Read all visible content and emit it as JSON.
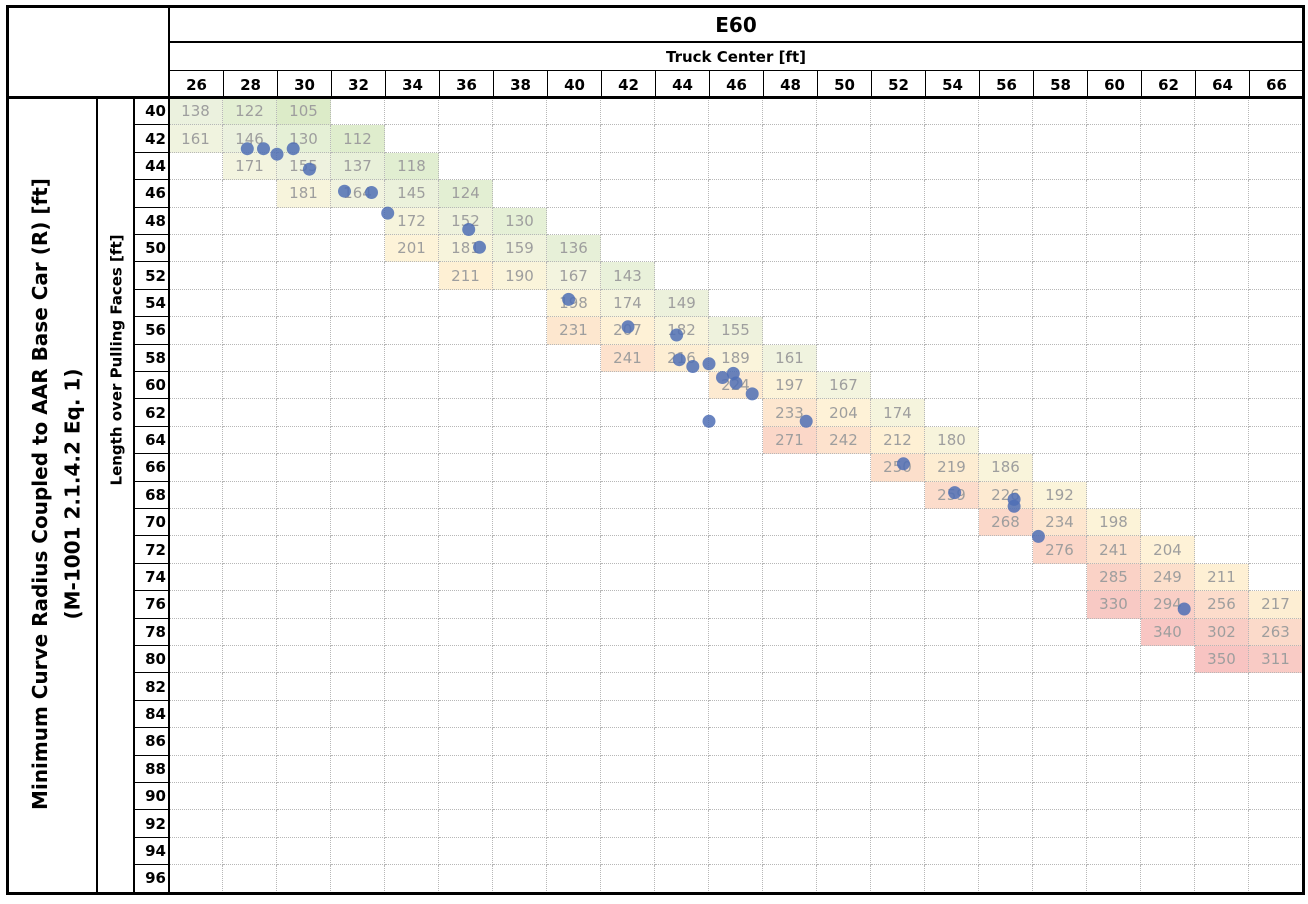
{
  "title": "E60",
  "x_header": "Truck Center [ft]",
  "y_header_outer_line1": "Minimum Curve Radius Coupled to AAR Base Car (R) [ft]",
  "y_header_outer_line2": "(M-1001 2.1.4.2 Eq. 1)",
  "y_header_inner": "Length over Pulling Faces [ft]",
  "chart_data": {
    "type": "heatmap",
    "title": "E60",
    "xlabel": "Truck Center [ft]",
    "ylabel": "Length over Pulling Faces [ft]",
    "value_label": "Minimum Curve Radius Coupled to AAR Base Car (R) [ft] (M-1001 2.1.4.2 Eq. 1)",
    "columns": [
      26,
      28,
      30,
      32,
      34,
      36,
      38,
      40,
      42,
      44,
      46,
      48,
      50,
      52,
      54,
      56,
      58,
      60,
      62,
      64,
      66
    ],
    "rows": [
      40,
      42,
      44,
      46,
      48,
      50,
      52,
      54,
      56,
      58,
      60,
      62,
      64,
      66,
      68,
      70,
      72,
      74,
      76,
      78,
      80,
      82,
      84,
      86,
      88,
      90,
      92,
      94,
      96
    ],
    "cells": [
      {
        "row": 40,
        "col": 26,
        "value": 138,
        "color": "#ebf1de"
      },
      {
        "row": 40,
        "col": 28,
        "value": 122,
        "color": "#e3efd3"
      },
      {
        "row": 40,
        "col": 30,
        "value": 105,
        "color": "#dcebc8"
      },
      {
        "row": 42,
        "col": 26,
        "value": 161,
        "color": "#f0f3df"
      },
      {
        "row": 42,
        "col": 28,
        "value": 146,
        "color": "#ebf1de"
      },
      {
        "row": 42,
        "col": 30,
        "value": 130,
        "color": "#e5f0d6"
      },
      {
        "row": 42,
        "col": 32,
        "value": 112,
        "color": "#dfedcd"
      },
      {
        "row": 44,
        "col": 28,
        "value": 171,
        "color": "#f3f4df"
      },
      {
        "row": 44,
        "col": 30,
        "value": 155,
        "color": "#eef2df"
      },
      {
        "row": 44,
        "col": 32,
        "value": 137,
        "color": "#e8f0d9"
      },
      {
        "row": 44,
        "col": 34,
        "value": 118,
        "color": "#e1eed1"
      },
      {
        "row": 46,
        "col": 30,
        "value": 181,
        "color": "#f7f4dc"
      },
      {
        "row": 46,
        "col": 32,
        "value": 164,
        "color": "#f1f3df"
      },
      {
        "row": 46,
        "col": 34,
        "value": 145,
        "color": "#ebf1db"
      },
      {
        "row": 46,
        "col": 36,
        "value": 124,
        "color": "#e3efd3"
      },
      {
        "row": 48,
        "col": 34,
        "value": 172,
        "color": "#f6f4dc"
      },
      {
        "row": 48,
        "col": 36,
        "value": 152,
        "color": "#eef2dc"
      },
      {
        "row": 48,
        "col": 38,
        "value": 130,
        "color": "#e5f0d6"
      },
      {
        "row": 50,
        "col": 34,
        "value": 201,
        "color": "#fdf3d8"
      },
      {
        "row": 50,
        "col": 36,
        "value": 181,
        "color": "#f7f4dc"
      },
      {
        "row": 50,
        "col": 38,
        "value": 159,
        "color": "#f0f3dd"
      },
      {
        "row": 50,
        "col": 40,
        "value": 136,
        "color": "#e7f0d8"
      },
      {
        "row": 52,
        "col": 36,
        "value": 211,
        "color": "#fef0d4"
      },
      {
        "row": 52,
        "col": 38,
        "value": 190,
        "color": "#faf4da"
      },
      {
        "row": 52,
        "col": 40,
        "value": 167,
        "color": "#f3f4df"
      },
      {
        "row": 52,
        "col": 42,
        "value": 143,
        "color": "#e9f1da"
      },
      {
        "row": 54,
        "col": 40,
        "value": 198,
        "color": "#fcf3d8"
      },
      {
        "row": 54,
        "col": 42,
        "value": 174,
        "color": "#f5f4dd"
      },
      {
        "row": 54,
        "col": 44,
        "value": 149,
        "color": "#ecf1dc"
      },
      {
        "row": 56,
        "col": 40,
        "value": 231,
        "color": "#fde7cf"
      },
      {
        "row": 56,
        "col": 42,
        "value": 207,
        "color": "#fef1d6"
      },
      {
        "row": 56,
        "col": 44,
        "value": 182,
        "color": "#f8f4dc"
      },
      {
        "row": 56,
        "col": 46,
        "value": 155,
        "color": "#eef2dd"
      },
      {
        "row": 58,
        "col": 42,
        "value": 241,
        "color": "#fde2cd"
      },
      {
        "row": 58,
        "col": 44,
        "value": 216,
        "color": "#fdeed3"
      },
      {
        "row": 58,
        "col": 46,
        "value": 189,
        "color": "#faf4db"
      },
      {
        "row": 58,
        "col": 48,
        "value": 161,
        "color": "#f0f3df"
      },
      {
        "row": 60,
        "col": 46,
        "value": 224,
        "color": "#fdead1"
      },
      {
        "row": 60,
        "col": 48,
        "value": 197,
        "color": "#fcf3d8"
      },
      {
        "row": 60,
        "col": 50,
        "value": 167,
        "color": "#f3f4df"
      },
      {
        "row": 62,
        "col": 48,
        "value": 233,
        "color": "#fde6cf"
      },
      {
        "row": 62,
        "col": 50,
        "value": 204,
        "color": "#fef2d7"
      },
      {
        "row": 62,
        "col": 52,
        "value": 174,
        "color": "#f5f4dd"
      },
      {
        "row": 64,
        "col": 48,
        "value": 271,
        "color": "#fbd7c8"
      },
      {
        "row": 64,
        "col": 50,
        "value": 242,
        "color": "#fde2cd"
      },
      {
        "row": 64,
        "col": 52,
        "value": 212,
        "color": "#fef0d4"
      },
      {
        "row": 64,
        "col": 54,
        "value": 180,
        "color": "#f7f4dc"
      },
      {
        "row": 66,
        "col": 52,
        "value": 250,
        "color": "#fcdfcb"
      },
      {
        "row": 66,
        "col": 54,
        "value": 219,
        "color": "#fdedd2"
      },
      {
        "row": 66,
        "col": 56,
        "value": 186,
        "color": "#f9f4db"
      },
      {
        "row": 68,
        "col": 54,
        "value": 259,
        "color": "#fcdccb"
      },
      {
        "row": 68,
        "col": 56,
        "value": 226,
        "color": "#fdead1"
      },
      {
        "row": 68,
        "col": 58,
        "value": 192,
        "color": "#fbf4da"
      },
      {
        "row": 70,
        "col": 56,
        "value": 268,
        "color": "#fbd8c9"
      },
      {
        "row": 70,
        "col": 58,
        "value": 234,
        "color": "#fde6cf"
      },
      {
        "row": 70,
        "col": 60,
        "value": 198,
        "color": "#fcf3d8"
      },
      {
        "row": 72,
        "col": 58,
        "value": 276,
        "color": "#fbd6c8"
      },
      {
        "row": 72,
        "col": 60,
        "value": 241,
        "color": "#fde2cd"
      },
      {
        "row": 72,
        "col": 62,
        "value": 204,
        "color": "#fef2d7"
      },
      {
        "row": 74,
        "col": 60,
        "value": 285,
        "color": "#fad2c6"
      },
      {
        "row": 74,
        "col": 62,
        "value": 249,
        "color": "#fcdfcb"
      },
      {
        "row": 74,
        "col": 64,
        "value": 211,
        "color": "#fef0d4"
      },
      {
        "row": 76,
        "col": 60,
        "value": 330,
        "color": "#f8c9c4"
      },
      {
        "row": 76,
        "col": 62,
        "value": 294,
        "color": "#facfc6"
      },
      {
        "row": 76,
        "col": 64,
        "value": 256,
        "color": "#fcdccb"
      },
      {
        "row": 76,
        "col": 66,
        "value": 217,
        "color": "#fdeed3"
      },
      {
        "row": 78,
        "col": 62,
        "value": 340,
        "color": "#f8c6c3"
      },
      {
        "row": 78,
        "col": 64,
        "value": 302,
        "color": "#f9cdc5"
      },
      {
        "row": 78,
        "col": 66,
        "value": 263,
        "color": "#fbdaca"
      },
      {
        "row": 80,
        "col": 64,
        "value": 350,
        "color": "#f8c4c2"
      },
      {
        "row": 80,
        "col": 66,
        "value": 311,
        "color": "#f9cbc5"
      }
    ],
    "scatter_points": [
      {
        "x": 27.9,
        "y": 42.7
      },
      {
        "x": 28.5,
        "y": 42.7
      },
      {
        "x": 29.0,
        "y": 43.1
      },
      {
        "x": 29.6,
        "y": 42.7
      },
      {
        "x": 30.2,
        "y": 44.2
      },
      {
        "x": 31.5,
        "y": 45.8
      },
      {
        "x": 32.5,
        "y": 45.9
      },
      {
        "x": 33.1,
        "y": 47.4
      },
      {
        "x": 36.1,
        "y": 48.6
      },
      {
        "x": 36.5,
        "y": 49.9
      },
      {
        "x": 39.8,
        "y": 53.7
      },
      {
        "x": 42.0,
        "y": 55.7
      },
      {
        "x": 43.8,
        "y": 56.3
      },
      {
        "x": 43.9,
        "y": 58.1
      },
      {
        "x": 44.4,
        "y": 58.6
      },
      {
        "x": 45.0,
        "y": 58.4
      },
      {
        "x": 45.5,
        "y": 59.4
      },
      {
        "x": 45.9,
        "y": 59.1
      },
      {
        "x": 46.0,
        "y": 59.8
      },
      {
        "x": 46.6,
        "y": 60.6
      },
      {
        "x": 45.0,
        "y": 62.6
      },
      {
        "x": 48.6,
        "y": 62.6
      },
      {
        "x": 52.2,
        "y": 65.7
      },
      {
        "x": 54.1,
        "y": 67.8
      },
      {
        "x": 56.3,
        "y": 68.3
      },
      {
        "x": 56.3,
        "y": 68.8
      },
      {
        "x": 57.2,
        "y": 71.0
      },
      {
        "x": 62.6,
        "y": 76.3
      }
    ],
    "marker_color": "#4f6fb5",
    "grid": true
  }
}
